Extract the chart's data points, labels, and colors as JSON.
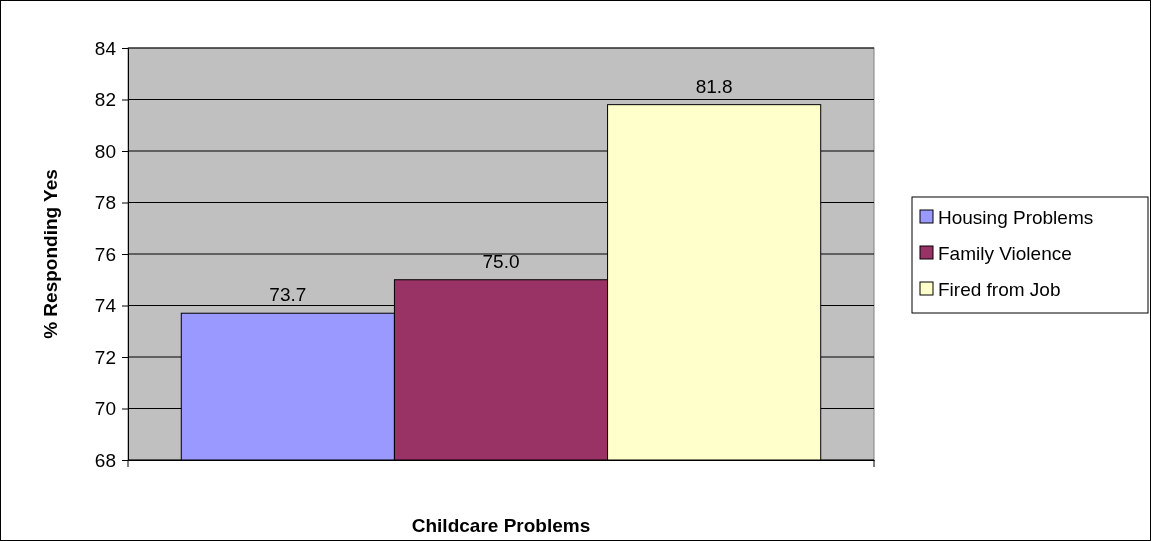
{
  "chart_data": {
    "type": "bar",
    "xlabel": "Childcare Problems",
    "ylabel": "% Responding Yes",
    "categories": [
      null
    ],
    "series": [
      {
        "name": "Housing Problems",
        "color": "#9999ff",
        "values": [
          73.7
        ],
        "value_labels": [
          "73.7"
        ]
      },
      {
        "name": "Family Violence",
        "color": "#993366",
        "values": [
          75.0
        ],
        "value_labels": [
          "75.0"
        ]
      },
      {
        "name": "Fired from Job",
        "color": "#ffffcc",
        "values": [
          81.8
        ],
        "value_labels": [
          "81.8"
        ]
      }
    ],
    "ylim": [
      68,
      84
    ],
    "yticks": [
      68,
      70,
      72,
      74,
      76,
      78,
      80,
      82,
      84
    ],
    "grid": "y",
    "legend": "right"
  }
}
